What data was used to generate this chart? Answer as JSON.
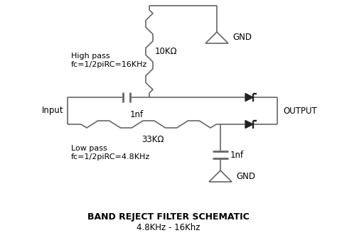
{
  "title_line1": "BAND REJECT FILTER SCHEMATIC",
  "title_line2": "4.8KHz - 16Khz",
  "label_input": "Input",
  "label_output": "OUTPUT",
  "label_gnd1": "GND",
  "label_gnd2": "GND",
  "label_high_pass": "High pass\nfc=1/2piRC=16KHz",
  "label_low_pass": "Low pass\nfc=1/2piRC=4.8KHz",
  "label_10k": "10KΩ",
  "label_33k": "33KΩ",
  "label_1nf_cap1": "1nf",
  "label_1nf_cap2": "1nf",
  "line_color": "#666666",
  "bg_color": "#ffffff",
  "text_color": "#000000",
  "diode_color": "#222222"
}
